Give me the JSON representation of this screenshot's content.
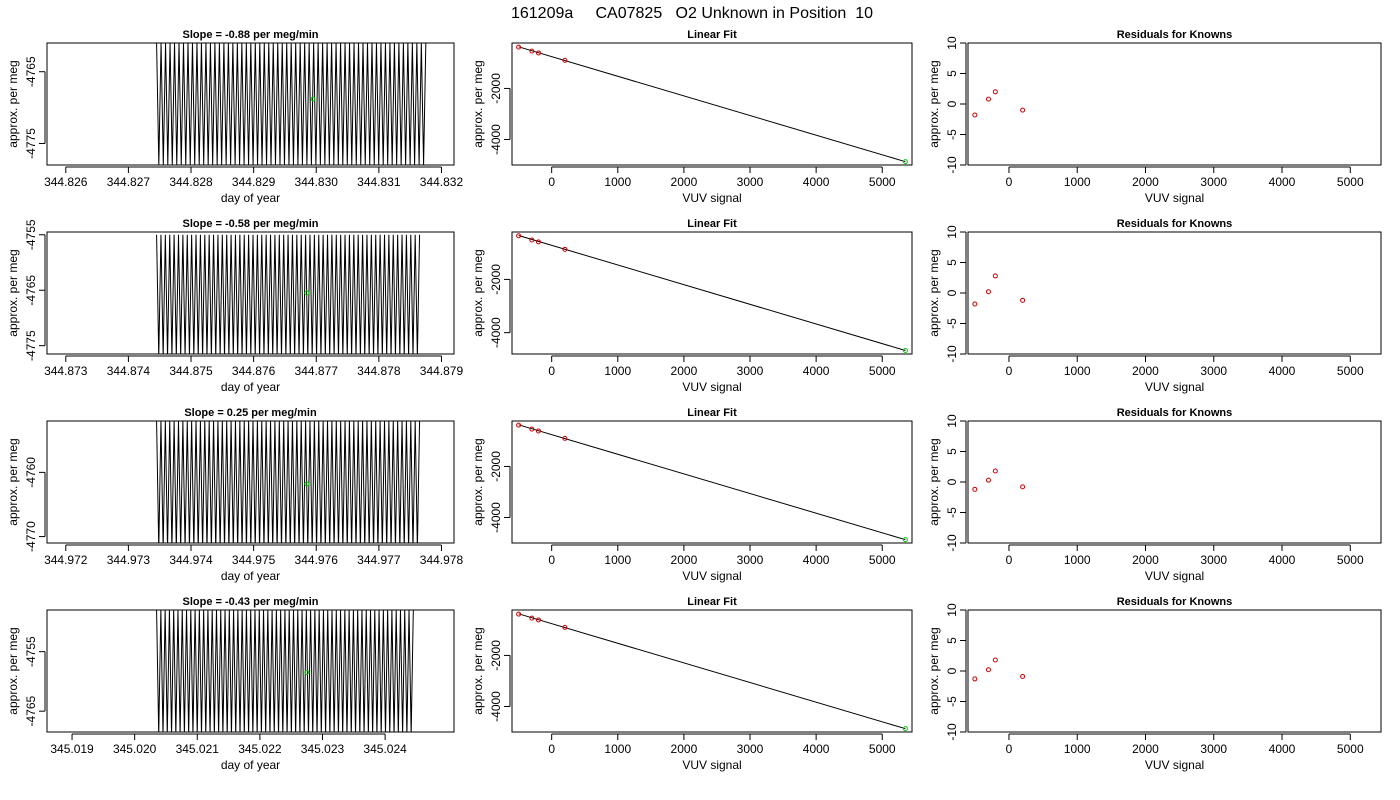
{
  "page_title": "161209a     CA07825   O2 Unknown in Position  10",
  "panel_titles": {
    "linear": "Linear Fit",
    "residuals": "Residuals for Knowns"
  },
  "axis_labels": {
    "day_x": "day of year",
    "day_y": "approx. per meg",
    "vuv_x": "VUV signal",
    "lin_y": "approx. per meg",
    "res_y": "approx. per meg"
  },
  "colors": {
    "trace": "#000000",
    "known_point": "#cc0000",
    "unknown_point": "#00cc00",
    "axes": "#000000"
  },
  "chart_data": {
    "type": "line",
    "rows": [
      {
        "slope_title": "Slope =  -0.88  per meg/min",
        "trace": {
          "x_start": 344.82745,
          "x_end": 344.83175,
          "y_top": -4761,
          "y_bottom": -4778,
          "y_center": -4769.5,
          "cycles": 60,
          "marker": {
            "x": 344.82995,
            "y": -4768.8
          }
        },
        "day_axis": {
          "xlim": [
            344.8257,
            344.8322
          ],
          "ylim": [
            -4778,
            -4761
          ],
          "xticks": [
            "344.826",
            "344.827",
            "344.828",
            "344.829",
            "344.830",
            "344.831",
            "344.832"
          ],
          "xtick_values": [
            344.826,
            344.827,
            344.828,
            344.829,
            344.83,
            344.831,
            344.832
          ],
          "yticks": [
            "-4765",
            "-4775"
          ],
          "ytick_values": [
            -4765,
            -4775
          ]
        },
        "linear": {
          "xlim": [
            -600,
            5450
          ],
          "ylim": [
            -5000,
            -220
          ],
          "known_points": [
            {
              "x": -500,
              "y": -380
            },
            {
              "x": -300,
              "y": -540
            },
            {
              "x": -200,
              "y": -610
            },
            {
              "x": 200,
              "y": -900
            }
          ],
          "unknown_point": {
            "x": 5350,
            "y": -4870
          },
          "line": [
            {
              "x": -500,
              "y": -370
            },
            {
              "x": 5350,
              "y": -4870
            }
          ]
        },
        "residuals": {
          "xlim": [
            -600,
            5450
          ],
          "ylim": [
            -10,
            10
          ],
          "points": [
            {
              "x": -500,
              "y": -1.8
            },
            {
              "x": -300,
              "y": 0.8
            },
            {
              "x": -200,
              "y": 2.0
            },
            {
              "x": 200,
              "y": -1.0
            }
          ]
        }
      },
      {
        "slope_title": "Slope =  -0.58  per meg/min",
        "trace": {
          "x_start": 344.87445,
          "x_end": 344.87865,
          "y_top": -4755,
          "y_bottom": -4777,
          "y_center": -4766,
          "cycles": 60,
          "marker": {
            "x": 344.87685,
            "y": -4765.5
          }
        },
        "day_axis": {
          "xlim": [
            344.8727,
            344.8792
          ],
          "ylim": [
            -4776.5,
            -4754.5
          ],
          "xticks": [
            "344.873",
            "344.874",
            "344.875",
            "344.876",
            "344.877",
            "344.878",
            "344.879"
          ],
          "xtick_values": [
            344.873,
            344.874,
            344.875,
            344.876,
            344.877,
            344.878,
            344.879
          ],
          "yticks": [
            "-4755",
            "-4765",
            "-4775"
          ],
          "ytick_values": [
            -4755,
            -4765,
            -4775
          ]
        },
        "linear": {
          "xlim": [
            -600,
            5450
          ],
          "ylim": [
            -4800,
            -220
          ],
          "known_points": [
            {
              "x": -500,
              "y": -360
            },
            {
              "x": -300,
              "y": -520
            },
            {
              "x": -200,
              "y": -590
            },
            {
              "x": 200,
              "y": -870
            }
          ],
          "unknown_point": {
            "x": 5350,
            "y": -4670
          },
          "line": [
            {
              "x": -500,
              "y": -350
            },
            {
              "x": 5350,
              "y": -4670
            }
          ]
        },
        "residuals": {
          "xlim": [
            -600,
            5450
          ],
          "ylim": [
            -10,
            10
          ],
          "points": [
            {
              "x": -500,
              "y": -1.8
            },
            {
              "x": -300,
              "y": 0.2
            },
            {
              "x": -200,
              "y": 2.8
            },
            {
              "x": 200,
              "y": -1.2
            }
          ]
        }
      },
      {
        "slope_title": "Slope =  0.25  per meg/min",
        "trace": {
          "x_start": 344.97345,
          "x_end": 344.97765,
          "y_top": -4752,
          "y_bottom": -4772,
          "y_center": -4762,
          "cycles": 60,
          "marker": {
            "x": 344.97585,
            "y": -4761.8
          }
        },
        "day_axis": {
          "xlim": [
            344.9717,
            344.9782
          ],
          "ylim": [
            -4771,
            -4752
          ],
          "xticks": [
            "344.972",
            "344.973",
            "344.974",
            "344.975",
            "344.976",
            "344.977",
            "344.978"
          ],
          "xtick_values": [
            344.972,
            344.973,
            344.974,
            344.975,
            344.976,
            344.977,
            344.978
          ],
          "yticks": [
            "-4760",
            "-4770"
          ],
          "ytick_values": [
            -4760,
            -4770
          ]
        },
        "linear": {
          "xlim": [
            -600,
            5450
          ],
          "ylim": [
            -5000,
            -220
          ],
          "known_points": [
            {
              "x": -500,
              "y": -380
            },
            {
              "x": -300,
              "y": -540
            },
            {
              "x": -200,
              "y": -610
            },
            {
              "x": 200,
              "y": -900
            }
          ],
          "unknown_point": {
            "x": 5350,
            "y": -4870
          },
          "line": [
            {
              "x": -500,
              "y": -370
            },
            {
              "x": 5350,
              "y": -4870
            }
          ]
        },
        "residuals": {
          "xlim": [
            -600,
            5450
          ],
          "ylim": [
            -10,
            10
          ],
          "points": [
            {
              "x": -500,
              "y": -1.2
            },
            {
              "x": -300,
              "y": 0.3
            },
            {
              "x": -200,
              "y": 1.8
            },
            {
              "x": 200,
              "y": -0.8
            }
          ]
        }
      },
      {
        "slope_title": "Slope =  -0.43  per meg/min",
        "trace": {
          "x_start": 345.02035,
          "x_end": 345.02445,
          "y_top": -4748,
          "y_bottom": -4769,
          "y_center": -4758.5,
          "cycles": 60,
          "marker": {
            "x": 345.02275,
            "y": -4758.5
          }
        },
        "day_axis": {
          "xlim": [
            345.0186,
            345.0251
          ],
          "ylim": [
            -4768.5,
            -4748
          ],
          "xticks": [
            "345.019",
            "345.020",
            "345.021",
            "345.022",
            "345.023",
            "345.024"
          ],
          "xtick_values": [
            345.019,
            345.02,
            345.021,
            345.022,
            345.023,
            345.024
          ],
          "yticks": [
            "-4755",
            "-4765"
          ],
          "ytick_values": [
            -4755,
            -4765
          ]
        },
        "linear": {
          "xlim": [
            -600,
            5450
          ],
          "ylim": [
            -5000,
            -220
          ],
          "known_points": [
            {
              "x": -500,
              "y": -380
            },
            {
              "x": -300,
              "y": -540
            },
            {
              "x": -200,
              "y": -610
            },
            {
              "x": 200,
              "y": -900
            }
          ],
          "unknown_point": {
            "x": 5350,
            "y": -4870
          },
          "line": [
            {
              "x": -500,
              "y": -370
            },
            {
              "x": 5350,
              "y": -4870
            }
          ]
        },
        "residuals": {
          "xlim": [
            -600,
            5450
          ],
          "ylim": [
            -10,
            10
          ],
          "points": [
            {
              "x": -500,
              "y": -1.3
            },
            {
              "x": -300,
              "y": 0.2
            },
            {
              "x": -200,
              "y": 1.8
            },
            {
              "x": 200,
              "y": -0.9
            }
          ]
        }
      }
    ],
    "linear_axis": {
      "xticks": [
        "0",
        "1000",
        "2000",
        "3000",
        "4000",
        "5000"
      ],
      "xtick_values": [
        0,
        1000,
        2000,
        3000,
        4000,
        5000
      ],
      "yticks": [
        "-2000",
        "-4000"
      ],
      "ytick_values": [
        -2000,
        -4000
      ]
    },
    "residual_axis": {
      "xticks": [
        "0",
        "1000",
        "2000",
        "3000",
        "4000",
        "5000"
      ],
      "xtick_values": [
        0,
        1000,
        2000,
        3000,
        4000,
        5000
      ],
      "yticks": [
        "10",
        "5",
        "0",
        "-5",
        "-10"
      ],
      "ytick_values": [
        10,
        5,
        0,
        -5,
        -10
      ]
    }
  }
}
